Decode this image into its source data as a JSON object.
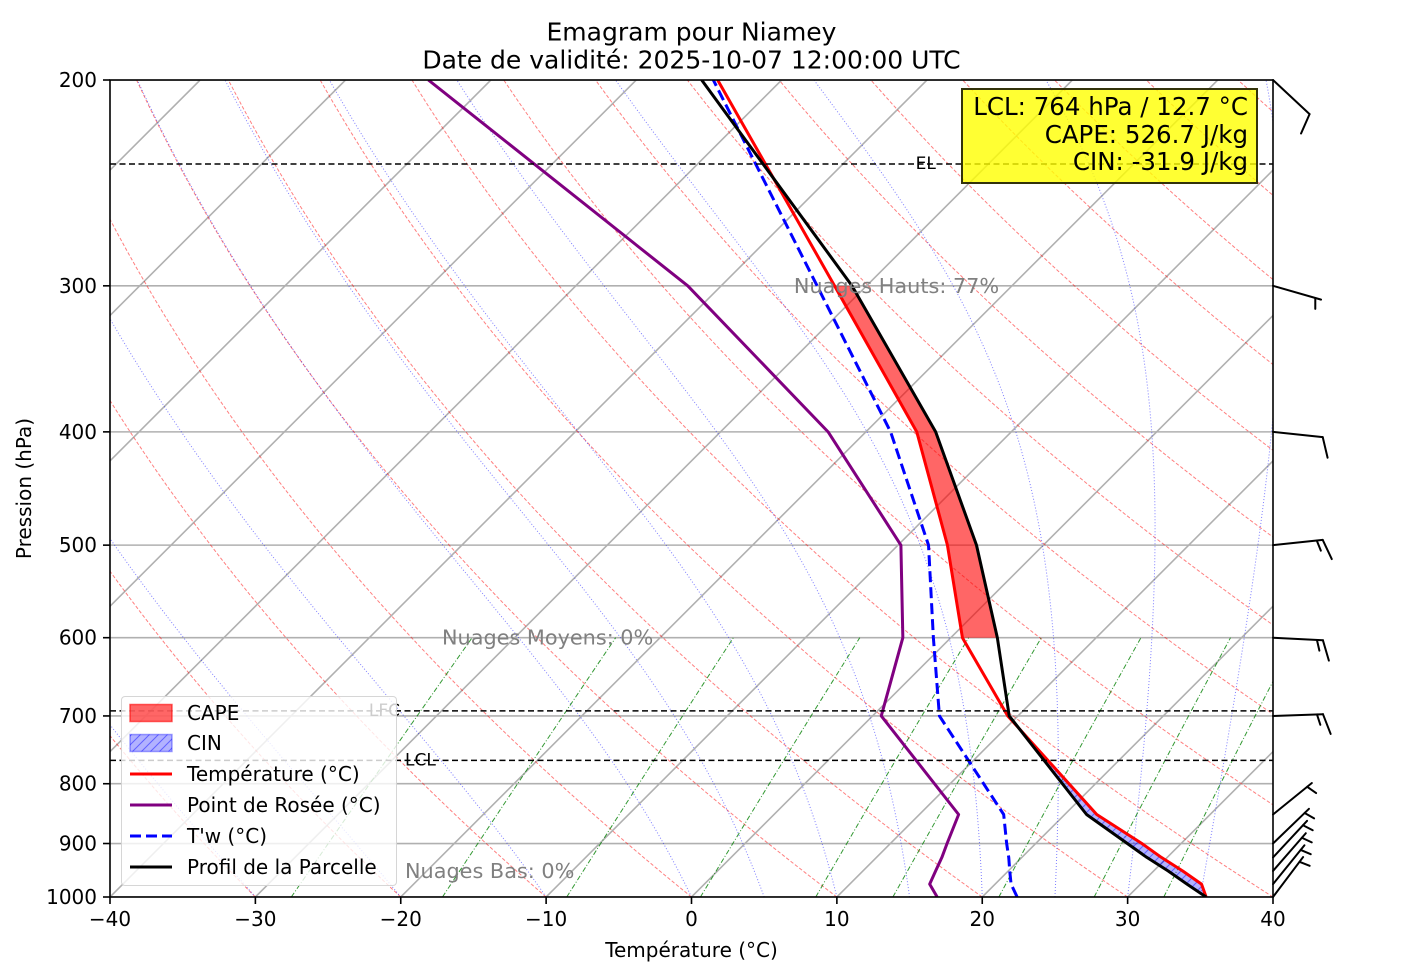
{
  "chart_data": {
    "type": "line",
    "title": "Emagram pour Niamey",
    "subtitle": "Date de validité: 2025-10-07 12:00:00 UTC",
    "xlabel": "Température (°C)",
    "ylabel": "Pression (hPa)",
    "xlim": [
      -40,
      40
    ],
    "ylim": [
      1000,
      200
    ],
    "xticks": [
      -40,
      -30,
      -20,
      -10,
      0,
      10,
      20,
      30,
      40
    ],
    "xtick_labels": [
      "−40",
      "−30",
      "−20",
      "−10",
      "0",
      "10",
      "20",
      "30",
      "40"
    ],
    "yticks": [
      200,
      300,
      400,
      500,
      600,
      700,
      800,
      900,
      1000
    ],
    "ytick_labels": [
      "200",
      "300",
      "400",
      "500",
      "600",
      "700",
      "800",
      "900",
      "1000"
    ],
    "grid": true,
    "pressure_levels_hPa": [
      1000,
      975,
      950,
      925,
      900,
      850,
      700,
      600,
      500,
      400,
      300,
      200
    ],
    "series": [
      {
        "name": "Température (°C)",
        "color": "#ff0000",
        "dashed": false,
        "values": [
          35.4,
          34.2,
          32.0,
          29.6,
          27.3,
          22.2,
          9.3,
          0.8,
          -6.6,
          -16.5,
          -32.2,
          -54.4
        ]
      },
      {
        "name": "Point de Rosée (°C)",
        "color": "#800080",
        "dashed": false,
        "values": [
          16.9,
          15.5,
          15.0,
          14.5,
          13.9,
          12.7,
          0.6,
          -3.3,
          -9.8,
          -22.6,
          -42.3,
          -74.3
        ]
      },
      {
        "name": "T'w (°C)",
        "color": "#0000ff",
        "dashed": true,
        "values": [
          22.4,
          21.1,
          20.1,
          19.1,
          18.0,
          15.8,
          4.6,
          -1.2,
          -7.9,
          -18.3,
          -33.4,
          -54.7
        ]
      },
      {
        "name": "Profil de la Parcelle",
        "color": "#000000",
        "dashed": false,
        "values": [
          35.4,
          33.2,
          31.0,
          28.6,
          26.3,
          21.5,
          9.4,
          3.2,
          -4.6,
          -15.2,
          -31.0,
          -55.5
        ]
      }
    ],
    "shaded_areas": [
      {
        "name": "CAPE",
        "color": "#ff0000",
        "from_hPa": 600,
        "to_hPa": 300
      },
      {
        "name": "CIN",
        "color": "#0000ff",
        "from_hPa": 1000,
        "to_hPa": 700
      }
    ],
    "level_markers": [
      {
        "label": "EL",
        "pressure_hPa": 236
      },
      {
        "label": "LFC",
        "pressure_hPa": 693
      },
      {
        "label": "LCL",
        "pressure_hPa": 764
      }
    ],
    "cloud_annotations": [
      {
        "label": "Nuages Hauts: 77%",
        "pressure_hPa": 300
      },
      {
        "label": "Nuages Moyens: 0%",
        "pressure_hPa": 600
      },
      {
        "label": "Nuages Bas: 0%",
        "pressure_hPa": 950
      }
    ],
    "wind_barbs": [
      {
        "pressure_hPa": 1000,
        "speed_kt": 5,
        "direction_deg": 37
      },
      {
        "pressure_hPa": 975,
        "speed_kt": 5,
        "direction_deg": 39
      },
      {
        "pressure_hPa": 950,
        "speed_kt": 5,
        "direction_deg": 41
      },
      {
        "pressure_hPa": 925,
        "speed_kt": 5,
        "direction_deg": 43
      },
      {
        "pressure_hPa": 900,
        "speed_kt": 5,
        "direction_deg": 46
      },
      {
        "pressure_hPa": 850,
        "speed_kt": 5,
        "direction_deg": 51
      },
      {
        "pressure_hPa": 700,
        "speed_kt": 15,
        "direction_deg": 88
      },
      {
        "pressure_hPa": 600,
        "speed_kt": 15,
        "direction_deg": 93
      },
      {
        "pressure_hPa": 500,
        "speed_kt": 15,
        "direction_deg": 84
      },
      {
        "pressure_hPa": 400,
        "speed_kt": 10,
        "direction_deg": 96
      },
      {
        "pressure_hPa": 300,
        "speed_kt": 5,
        "direction_deg": 106
      },
      {
        "pressure_hPa": 200,
        "speed_kt": 10,
        "direction_deg": 133
      }
    ],
    "background_lines": {
      "isotherm_step_degC": 10,
      "dry_adiabats_theta_degC": [
        -40,
        -30,
        -20,
        -10,
        0,
        10,
        20,
        30,
        40,
        50,
        60,
        70,
        80,
        90,
        100,
        110,
        120,
        130,
        140,
        150,
        160,
        170,
        180,
        190,
        200
      ],
      "moist_adiabats_t0_degC": [
        -40,
        -30,
        -20,
        -10,
        0,
        5,
        10,
        15,
        20,
        25,
        30,
        35
      ],
      "mixing_ratios_g_per_kg": [
        0.4,
        1,
        2,
        4,
        7,
        10,
        16,
        24,
        32
      ],
      "mixing_ratio_top_hPa": 600
    },
    "legend": {
      "location": "lower-left"
    }
  },
  "info_box": {
    "lcl": "LCL: 764 hPa / 12.7 °C",
    "cape": "CAPE: 526.7 J/kg",
    "cin": "CIN: -31.9 J/kg"
  }
}
